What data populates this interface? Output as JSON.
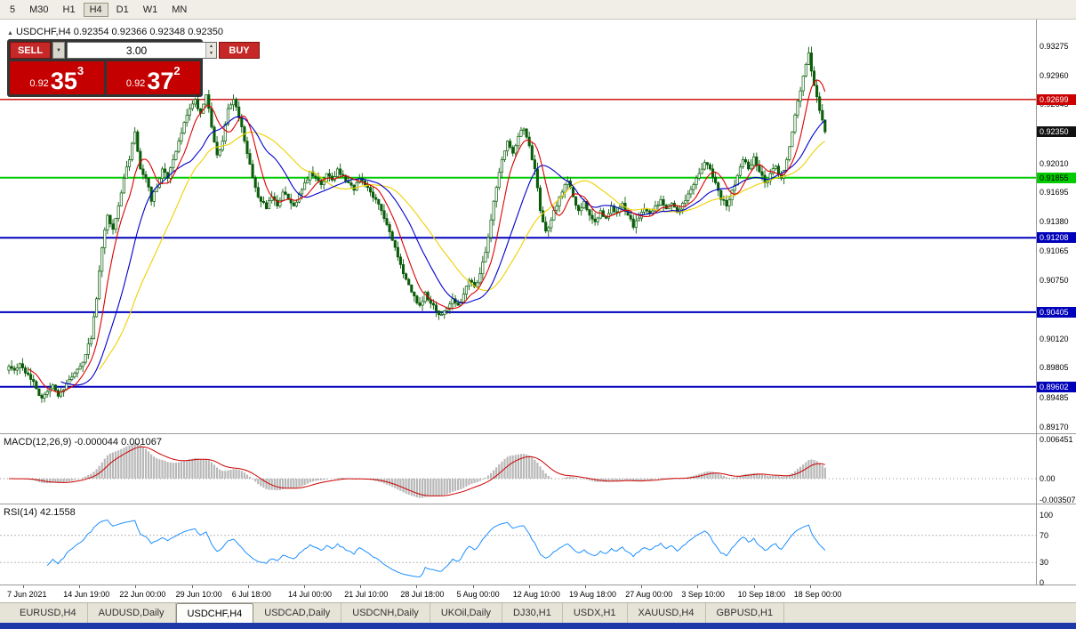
{
  "toolbar": {
    "timeframes": [
      "5",
      "M30",
      "H1",
      "H4",
      "D1",
      "W1",
      "MN"
    ],
    "active": "H4"
  },
  "symbol_info": {
    "name": "USDCHF,H4",
    "quotes": "0.92354 0.92366 0.92348 0.92350"
  },
  "trade_panel": {
    "sell_label": "SELL",
    "buy_label": "BUY",
    "volume": "3.00",
    "sell_price": {
      "prefix": "0.92",
      "big": "35",
      "sup": "3"
    },
    "buy_price": {
      "prefix": "0.92",
      "big": "37",
      "sup": "2"
    }
  },
  "price_axis": {
    "plain": [
      "0.93275",
      "0.92960",
      "0.92645",
      "0.92010",
      "0.91695",
      "0.91380",
      "0.91065",
      "0.90750",
      "0.90120",
      "0.89805",
      "0.89485",
      "0.89170"
    ],
    "markers": [
      {
        "text": "0.92699",
        "bg": "#cc0000",
        "fg": "#ffffff"
      },
      {
        "text": "0.92350",
        "bg": "#111111",
        "fg": "#ffffff"
      },
      {
        "text": "0.91855",
        "bg": "#00cc00",
        "fg": "#000000"
      },
      {
        "text": "0.91208",
        "bg": "#0000bb",
        "fg": "#ffffff"
      },
      {
        "text": "0.90405",
        "bg": "#0000bb",
        "fg": "#ffffff"
      },
      {
        "text": "0.89602",
        "bg": "#0000bb",
        "fg": "#ffffff"
      }
    ]
  },
  "hlines": [
    {
      "price": 0.92699,
      "color": "#cc0000",
      "width": 1.4
    },
    {
      "price": 0.91855,
      "color": "#00cc00",
      "width": 2
    },
    {
      "price": 0.91208,
      "color": "#0000bb",
      "width": 2
    },
    {
      "price": 0.90405,
      "color": "#0000bb",
      "width": 2
    },
    {
      "price": 0.89602,
      "color": "#0000bb",
      "width": 2
    }
  ],
  "macd_panel": {
    "label": "MACD(12,26,9) -0.000044 0.001067",
    "axis": [
      {
        "v": 0.006451,
        "text": "0.006451"
      },
      {
        "v": 0,
        "text": "0.00"
      },
      {
        "v": -0.003507,
        "text": "-0.003507"
      }
    ]
  },
  "rsi_panel": {
    "label": "RSI(14) 42.1558",
    "axis": [
      100,
      70,
      30,
      0
    ],
    "levels": [
      70,
      30
    ]
  },
  "time_axis": [
    "7 Jun 2021",
    "14 Jun 19:00",
    "22 Jun 00:00",
    "29 Jun 10:00",
    "6 Jul 18:00",
    "14 Jul 00:00",
    "21 Jul 10:00",
    "28 Jul 18:00",
    "5 Aug 00:00",
    "12 Aug 10:00",
    "19 Aug 18:00",
    "27 Aug 00:00",
    "3 Sep 10:00",
    "10 Sep 18:00",
    "18 Sep 00:00"
  ],
  "tabs": {
    "items": [
      "EURUSD,H4",
      "AUDUSD,Daily",
      "USDCHF,H4",
      "USDCAD,Daily",
      "USDCNH,Daily",
      "UKOil,Daily",
      "DJ30,H1",
      "USDX,H1",
      "XAUUSD,H4",
      "GBPUSD,H1"
    ],
    "active": "USDCHF,H4"
  },
  "chart_data": {
    "type": "candlestick",
    "symbol": "USDCHF",
    "timeframe": "H4",
    "current": {
      "open": "0.92354",
      "high": "0.92366",
      "low": "0.92348",
      "close": "0.92350"
    },
    "rsi_value": "42.1558",
    "macd_values": "-0.000044 0.001067",
    "visible_price_range": [
      0.891,
      0.9356
    ],
    "colors": {
      "candle": "#0b5d0b",
      "ma_fast": "#dd0000",
      "ma_medium": "#0000cc",
      "ma_slow": "#f0d000",
      "macd_hist": "#b8b8b8",
      "macd_signal": "#cc0000",
      "rsi_line": "#1e90ff"
    },
    "closes": [
      0.8982,
      0.8978,
      0.8985,
      0.8975,
      0.8968,
      0.8958,
      0.8948,
      0.8955,
      0.8962,
      0.895,
      0.8957,
      0.8968,
      0.8975,
      0.8982,
      0.8995,
      0.9012,
      0.9055,
      0.911,
      0.9145,
      0.913,
      0.9155,
      0.9185,
      0.9205,
      0.9235,
      0.9195,
      0.9185,
      0.916,
      0.9175,
      0.9195,
      0.9185,
      0.9205,
      0.9225,
      0.9245,
      0.926,
      0.927,
      0.9255,
      0.9275,
      0.924,
      0.921,
      0.9225,
      0.926,
      0.927,
      0.925,
      0.9225,
      0.92,
      0.9175,
      0.916,
      0.9152,
      0.9165,
      0.9155,
      0.917,
      0.9162,
      0.9155,
      0.9168,
      0.918,
      0.9192,
      0.9185,
      0.9178,
      0.919,
      0.9183,
      0.9195,
      0.9188,
      0.918,
      0.9172,
      0.9185,
      0.9178,
      0.917,
      0.9162,
      0.915,
      0.9135,
      0.9118,
      0.91,
      0.9082,
      0.907,
      0.9058,
      0.9048,
      0.9062,
      0.905,
      0.9042,
      0.9038,
      0.9045,
      0.9055,
      0.9048,
      0.906,
      0.9075,
      0.9068,
      0.9082,
      0.9105,
      0.914,
      0.9175,
      0.9205,
      0.9225,
      0.9212,
      0.923,
      0.9238,
      0.922,
      0.9195,
      0.915,
      0.9128,
      0.914,
      0.9155,
      0.917,
      0.9182,
      0.9165,
      0.915,
      0.916,
      0.9145,
      0.9138,
      0.915,
      0.9142,
      0.9155,
      0.9148,
      0.9158,
      0.9145,
      0.9132,
      0.9142,
      0.9152,
      0.9147,
      0.9155,
      0.9162,
      0.9152,
      0.9158,
      0.9148,
      0.9158,
      0.9168,
      0.9178,
      0.919,
      0.9202,
      0.9195,
      0.918,
      0.9162,
      0.9155,
      0.9172,
      0.9188,
      0.9205,
      0.9195,
      0.9208,
      0.9192,
      0.918,
      0.919,
      0.9198,
      0.9185,
      0.9205,
      0.9235,
      0.9268,
      0.9295,
      0.932,
      0.9285,
      0.9258,
      0.9235
    ]
  }
}
